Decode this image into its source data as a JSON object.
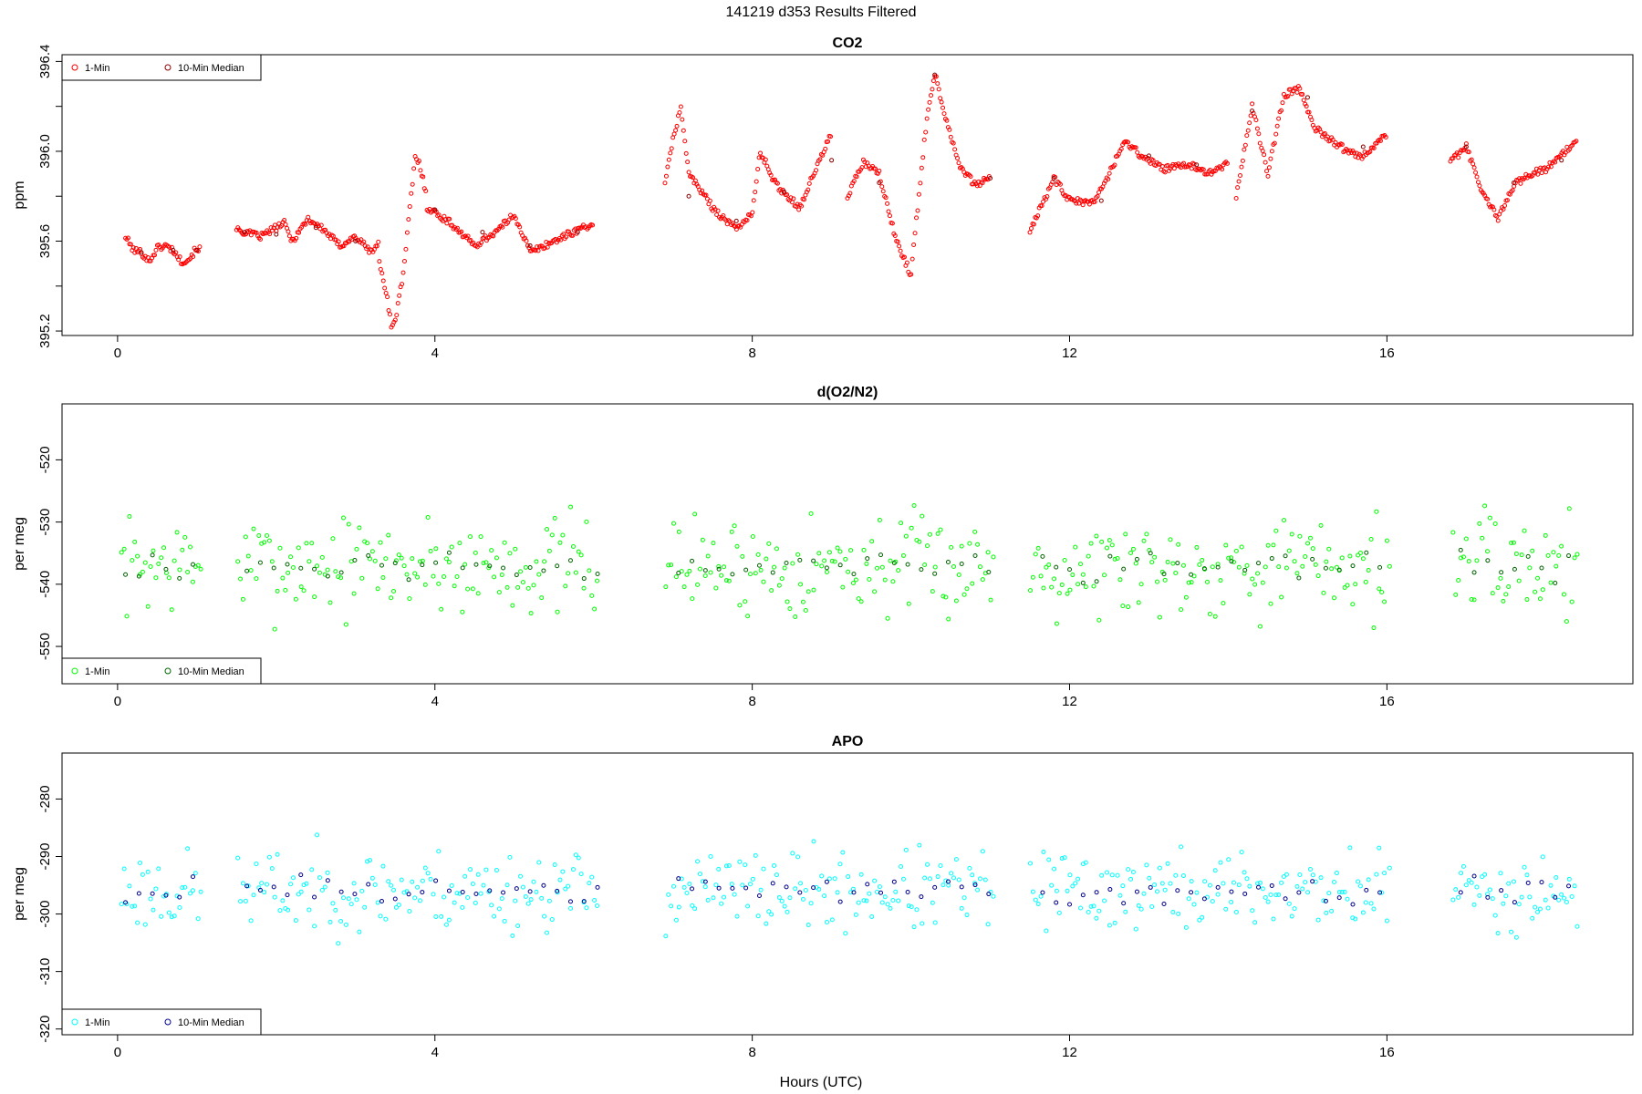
{
  "page_title": "141219   d353   Results Filtered",
  "xlabel": "Hours (UTC)",
  "chart_data": [
    {
      "type": "scatter",
      "title": "CO2",
      "ylabel": "ppm",
      "xlim": [
        -0.7,
        19.1
      ],
      "ylim": [
        395.18,
        396.43
      ],
      "xticks": [
        0,
        4,
        8,
        12,
        16
      ],
      "yticks": [
        395.2,
        395.6,
        396.0,
        396.4
      ],
      "yminor": [
        395.4,
        395.8,
        396.2
      ],
      "ytick_labels": [
        "395.2",
        "395.6",
        "396.0",
        "396.4"
      ],
      "legend": {
        "position": "top-left",
        "entries": [
          "1-Min",
          "10-Min Median"
        ]
      },
      "colors": {
        "min1": "#ff0000",
        "median": "#8b0000"
      },
      "series": [
        {
          "name": "1-Min",
          "segments": [
            {
              "x": [
                0.1,
                0.2,
                0.3,
                0.4,
                0.5,
                0.6,
                0.7,
                0.8,
                0.9,
                1.0,
                1.05
              ],
              "y": [
                395.62,
                395.56,
                395.55,
                395.51,
                395.57,
                395.58,
                395.56,
                395.51,
                395.52,
                395.57,
                395.56
              ]
            },
            {
              "x": [
                1.5,
                1.8,
                2.1,
                2.2,
                2.4,
                2.6,
                2.8,
                3.0,
                3.2,
                3.3
              ],
              "y": [
                395.65,
                395.62,
                395.68,
                395.6,
                395.7,
                395.65,
                395.58,
                395.62,
                395.55,
                395.6
              ]
            },
            {
              "x": [
                3.3,
                3.4,
                3.45,
                3.5,
                3.6,
                3.7,
                3.75,
                3.8,
                3.9
              ],
              "y": [
                395.5,
                395.35,
                395.22,
                395.25,
                395.45,
                395.8,
                395.97,
                395.95,
                395.8
              ]
            },
            {
              "x": [
                3.9,
                4.2,
                4.5,
                4.8,
                5.0,
                5.2,
                5.5,
                5.8,
                6.0
              ],
              "y": [
                395.75,
                395.68,
                395.58,
                395.65,
                395.72,
                395.55,
                395.6,
                395.65,
                395.68
              ]
            },
            {
              "x": [
                6.9,
                7.0,
                7.1,
                7.2,
                7.5,
                7.7,
                7.8,
                8.0,
                8.1,
                8.3,
                8.6,
                8.8,
                9.0
              ],
              "y": [
                395.85,
                396.05,
                396.2,
                395.9,
                395.75,
                395.68,
                395.66,
                395.72,
                396.0,
                395.85,
                395.75,
                395.92,
                396.08
              ]
            },
            {
              "x": [
                9.2,
                9.4,
                9.6,
                9.8,
                10.0,
                10.1,
                10.2,
                10.3,
                10.4,
                10.6,
                10.8,
                11.0
              ],
              "y": [
                395.8,
                395.95,
                395.9,
                395.62,
                395.45,
                395.8,
                396.15,
                396.35,
                396.2,
                395.95,
                395.85,
                395.88
              ]
            },
            {
              "x": [
                11.5,
                11.6,
                11.8,
                12.0,
                12.3,
                12.5,
                12.7,
                12.9,
                13.2,
                13.5,
                13.8,
                14.0
              ],
              "y": [
                395.65,
                395.72,
                395.88,
                395.78,
                395.77,
                395.9,
                396.05,
                395.98,
                395.92,
                395.94,
                395.9,
                395.95
              ]
            },
            {
              "x": [
                14.1,
                14.3,
                14.5,
                14.7,
                14.9,
                15.1,
                15.3,
                15.5,
                15.7,
                15.9,
                16.0
              ],
              "y": [
                395.8,
                396.2,
                395.9,
                396.25,
                396.28,
                396.1,
                396.05,
                396.0,
                395.98,
                396.05,
                396.08
              ]
            },
            {
              "x": [
                16.8,
                17.0,
                17.2,
                17.4,
                17.6,
                17.8,
                18.0,
                18.2,
                18.4
              ],
              "y": [
                395.95,
                396.02,
                395.82,
                395.7,
                395.85,
                395.9,
                395.92,
                395.98,
                396.05
              ]
            }
          ]
        },
        {
          "name": "10-Min Median",
          "segments": [
            {
              "x": [
                0.3,
                0.7,
                1.0
              ],
              "y": [
                395.55,
                395.56,
                395.56
              ]
            },
            {
              "x": [
                1.6,
                2.0,
                2.5,
                3.0
              ],
              "y": [
                395.64,
                395.63,
                395.66,
                395.6
              ]
            },
            {
              "x": [
                4.0,
                4.6,
                5.2,
                5.8
              ],
              "y": [
                395.74,
                395.64,
                395.58,
                395.64
              ]
            },
            {
              "x": [
                7.2,
                7.8,
                8.4,
                9.0,
                9.6,
                10.3,
                11.0
              ],
              "y": [
                395.8,
                395.69,
                395.82,
                395.96,
                395.86,
                396.34,
                395.88
              ]
            },
            {
              "x": [
                11.8,
                12.4,
                13.0,
                13.6,
                14.3,
                15.0,
                15.7
              ],
              "y": [
                395.88,
                395.78,
                395.98,
                395.94,
                396.18,
                396.24,
                396.02
              ]
            },
            {
              "x": [
                17.0,
                17.6,
                18.2
              ],
              "y": [
                396.02,
                395.86,
                395.96
              ]
            }
          ]
        }
      ]
    },
    {
      "type": "scatter",
      "title": "d(O2/N2)",
      "ylabel": "per meg",
      "xlim": [
        -0.7,
        19.1
      ],
      "ylim": [
        -556,
        -511
      ],
      "xticks": [
        0,
        4,
        8,
        12,
        16
      ],
      "yticks": [
        -550,
        -540,
        -530,
        -520
      ],
      "yminor": [],
      "ytick_labels": [
        "-550",
        "-540",
        "-530",
        "-520"
      ],
      "legend": {
        "position": "bottom-left",
        "entries": [
          "1-Min",
          "10-Min Median"
        ]
      },
      "colors": {
        "min1": "#00ff00",
        "median": "#006400"
      },
      "series": [
        {
          "name": "1-Min",
          "base": -537,
          "amp": 8,
          "seed": 7
        },
        {
          "name": "10-Min Median",
          "base": -537,
          "amp": 3,
          "seed": 11
        }
      ]
    },
    {
      "type": "scatter",
      "title": "APO",
      "ylabel": "per meg",
      "xlim": [
        -0.7,
        19.1
      ],
      "ylim": [
        -321,
        -272
      ],
      "xticks": [
        0,
        4,
        8,
        12,
        16
      ],
      "yticks": [
        -320,
        -310,
        -300,
        -290,
        -280
      ],
      "yminor": [],
      "ytick_labels": [
        "-320",
        "-310",
        "-300",
        "-290",
        "-280"
      ],
      "legend": {
        "position": "bottom-left",
        "entries": [
          "1-Min",
          "10-Min Median"
        ]
      },
      "colors": {
        "min1": "#00ffff",
        "median": "#00008b"
      },
      "series": [
        {
          "name": "1-Min",
          "base": -296,
          "amp": 7,
          "seed": 23
        },
        {
          "name": "10-Min Median",
          "base": -296,
          "amp": 3,
          "seed": 31
        }
      ]
    }
  ],
  "gaps": [
    [
      1.05,
      1.5
    ],
    [
      6.05,
      6.9
    ],
    [
      11.05,
      11.5
    ],
    [
      16.05,
      16.8
    ]
  ]
}
